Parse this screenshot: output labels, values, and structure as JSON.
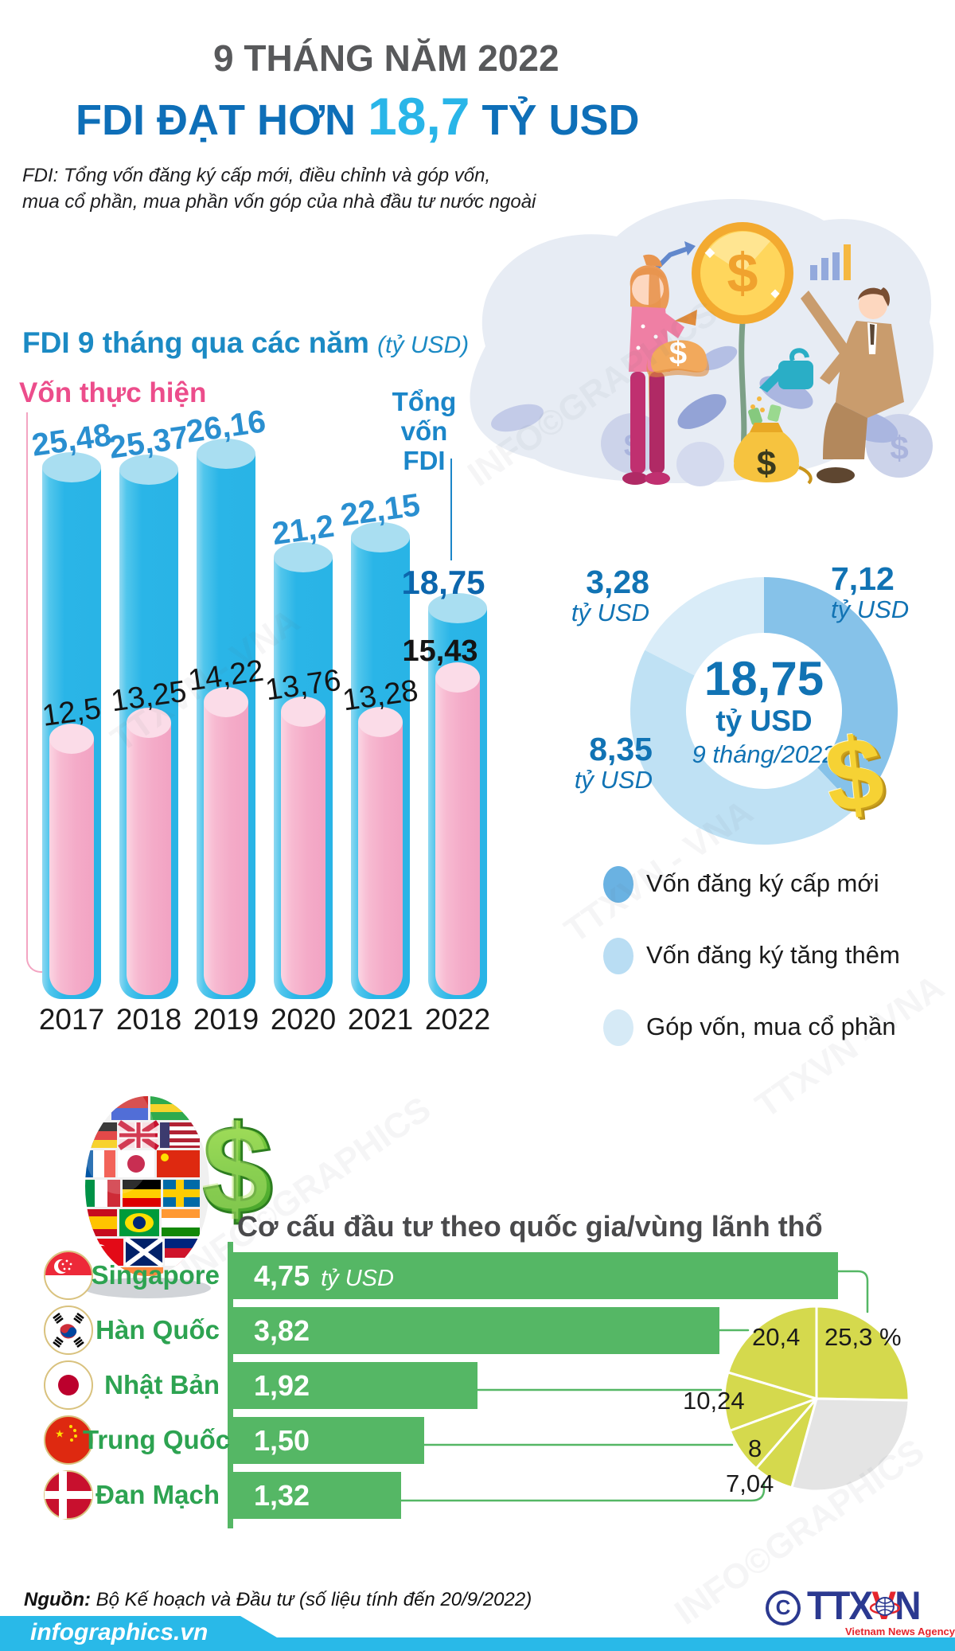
{
  "header": {
    "kicker": "9 THÁNG NĂM 2022",
    "title_prefix": "FDI ĐẠT HƠN ",
    "title_value": "18,7",
    "title_suffix": " TỶ USD",
    "subtitle_line1": "FDI: Tổng vốn đăng ký cấp mới, điều chỉnh và góp vốn,",
    "subtitle_line2": "mua cổ phần, mua phần vốn góp của nhà đầu tư nước ngoài"
  },
  "yearly": {
    "heading": "FDI 9 tháng qua các năm ",
    "heading_unit": "(tỷ USD)",
    "pink_label": "Vốn thực hiện",
    "total_label_line1": "Tổng vốn",
    "total_label_line2": "FDI"
  },
  "donut": {
    "center_value": "18,75",
    "center_unit": "tỷ USD",
    "center_period": "9 tháng/2022",
    "unit_label": "tỷ USD",
    "legend_colors": [
      "#6ab2e2",
      "#b9ddf3",
      "#d6eaf6"
    ]
  },
  "countries_section": {
    "title": "Cơ cấu đầu tư theo quốc gia/vùng lãnh thổ"
  },
  "icons": {
    "dollar": "$"
  },
  "watermarks": [
    "TTXVN - VNA",
    "INFO©GRAPHICS"
  ],
  "footer": {
    "source_bold": "Nguồn:",
    "source_rest": " Bộ Kế hoạch và Đầu tư (số liệu tính đến 20/9/2022)",
    "brand": "infographics.vn",
    "copyright": "C",
    "agency_parts": [
      "TTX",
      "V",
      "N"
    ],
    "agency_sub": "Vietnam News Agency"
  },
  "chart_data": [
    {
      "type": "bar",
      "title": "FDI 9 tháng qua các năm",
      "ylabel": "tỷ USD",
      "categories": [
        "2017",
        "2018",
        "2019",
        "2020",
        "2021",
        "2022"
      ],
      "series": [
        {
          "name": "Tổng vốn FDI",
          "color": "#29b4e6",
          "values": [
            25.48,
            25.37,
            26.16,
            21.2,
            22.15,
            18.75
          ],
          "labels": [
            "25,48",
            "25,37",
            "26,16",
            "21,2",
            "22,15",
            "18,75"
          ]
        },
        {
          "name": "Vốn thực hiện",
          "color": "#f4aac7",
          "values": [
            12.5,
            13.25,
            14.22,
            13.76,
            13.28,
            15.43
          ],
          "labels": [
            "12,5",
            "13,25",
            "14,22",
            "13,76",
            "13,28",
            "15,43"
          ]
        }
      ]
    },
    {
      "type": "pie",
      "subtype": "donut",
      "title": "18,75 tỷ USD 9 tháng/2022",
      "slices": [
        {
          "label": "Vốn đăng ký cấp mới",
          "value": 7.12,
          "display": "7,12",
          "color": "#86c2e9"
        },
        {
          "label": "Vốn đăng ký tăng thêm",
          "value": 8.35,
          "display": "8,35",
          "color": "#bfe1f4"
        },
        {
          "label": "Góp vốn, mua cổ phần",
          "value": 3.28,
          "display": "3,28",
          "color": "#d9ecf8"
        }
      ],
      "total_display": "18,75",
      "unit": "tỷ USD"
    },
    {
      "type": "bar",
      "subtype": "horizontal-with-pie",
      "title": "Cơ cấu đầu tư theo quốc gia/vùng lãnh thổ",
      "unit": "tỷ USD",
      "rows": [
        {
          "name": "Singapore",
          "flag": "sg",
          "value": 4.75,
          "display": "4,75",
          "unit": "tỷ USD",
          "pie_value": 25.3,
          "pie_display": "25,3 %"
        },
        {
          "name": "Hàn Quốc",
          "flag": "kr",
          "value": 3.82,
          "display": "3,82",
          "pie_value": 20.4,
          "pie_display": "20,4"
        },
        {
          "name": "Nhật Bản",
          "flag": "jp",
          "value": 1.92,
          "display": "1,92",
          "pie_value": 10.24,
          "pie_display": "10,24"
        },
        {
          "name": "Trung Quốc",
          "flag": "cn",
          "value": 1.5,
          "display": "1,50",
          "pie_value": 8,
          "pie_display": "8"
        },
        {
          "name": "Đan Mạch",
          "flag": "dk",
          "value": 1.32,
          "display": "1,32",
          "pie_value": 7.04,
          "pie_display": "7,04"
        }
      ],
      "pie_other_value": 29.02,
      "pie_colors": {
        "slice": "#d5d94d",
        "other": "#e4e4e4"
      }
    }
  ]
}
